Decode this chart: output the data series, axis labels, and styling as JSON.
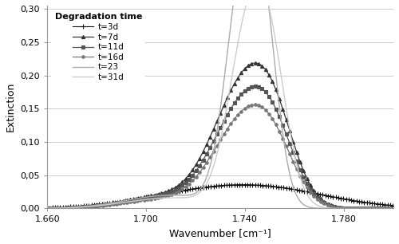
{
  "xlabel": "Wavenumber [cm⁻¹]",
  "ylabel": "Extinction",
  "xlim": [
    1660,
    1800
  ],
  "ylim": [
    0.0,
    0.305
  ],
  "xticks": [
    1660,
    1700,
    1740,
    1780
  ],
  "xtick_labels": [
    "1.660",
    "1.700",
    "1.740",
    "1.780"
  ],
  "yticks": [
    0.0,
    0.05,
    0.1,
    0.15,
    0.2,
    0.25,
    0.3
  ],
  "ytick_labels": [
    "0,00",
    "0,05",
    "0,10",
    "0,15",
    "0,20",
    "0,25",
    "0,30"
  ],
  "legend_title": "Degradation time",
  "background_color": "#ffffff",
  "grid_color": "#cccccc",
  "series": [
    {
      "label": "t=3d",
      "color": "#111111",
      "marker": "+",
      "markersize": 4,
      "linewidth": 0.8,
      "markevery": 15,
      "components": [
        {
          "amp": 0.033,
          "cen": 1744,
          "wid": 28
        },
        {
          "amp": 0.008,
          "cen": 1710,
          "wid": 22
        }
      ]
    },
    {
      "label": "t=7d",
      "color": "#333333",
      "marker": "^",
      "markersize": 3,
      "linewidth": 0.9,
      "markevery": 20,
      "components": [
        {
          "amp": 0.145,
          "cen": 1741,
          "wid": 11
        },
        {
          "amp": 0.09,
          "cen": 1752,
          "wid": 9
        },
        {
          "amp": 0.04,
          "cen": 1730,
          "wid": 10
        },
        {
          "amp": 0.02,
          "cen": 1710,
          "wid": 18
        }
      ]
    },
    {
      "label": "t=11d",
      "color": "#555555",
      "marker": "s",
      "markersize": 2.5,
      "linewidth": 0.9,
      "markevery": 20,
      "components": [
        {
          "amp": 0.122,
          "cen": 1741,
          "wid": 11
        },
        {
          "amp": 0.075,
          "cen": 1752,
          "wid": 9
        },
        {
          "amp": 0.034,
          "cen": 1730,
          "wid": 10
        },
        {
          "amp": 0.018,
          "cen": 1710,
          "wid": 18
        }
      ]
    },
    {
      "label": "t=16d",
      "color": "#777777",
      "marker": "o",
      "markersize": 2.5,
      "linewidth": 0.9,
      "markevery": 20,
      "components": [
        {
          "amp": 0.105,
          "cen": 1741,
          "wid": 11
        },
        {
          "amp": 0.062,
          "cen": 1752,
          "wid": 9
        },
        {
          "amp": 0.028,
          "cen": 1730,
          "wid": 10
        },
        {
          "amp": 0.015,
          "cen": 1710,
          "wid": 18
        }
      ]
    },
    {
      "label": "t=23",
      "color": "#aaaaaa",
      "marker": null,
      "markersize": 0,
      "linewidth": 1.0,
      "markevery": 1,
      "components": [
        {
          "amp": 0.286,
          "cen": 1738,
          "wid": 6.5
        },
        {
          "amp": 0.267,
          "cen": 1747,
          "wid": 6.0
        },
        {
          "amp": 0.02,
          "cen": 1710,
          "wid": 18
        }
      ]
    },
    {
      "label": "t=31d",
      "color": "#cccccc",
      "marker": null,
      "markersize": 0,
      "linewidth": 1.0,
      "markevery": 1,
      "components": [
        {
          "amp": 0.222,
          "cen": 1740,
          "wid": 7.5
        },
        {
          "amp": 0.205,
          "cen": 1750,
          "wid": 7.0
        },
        {
          "amp": 0.016,
          "cen": 1710,
          "wid": 18
        }
      ]
    }
  ]
}
